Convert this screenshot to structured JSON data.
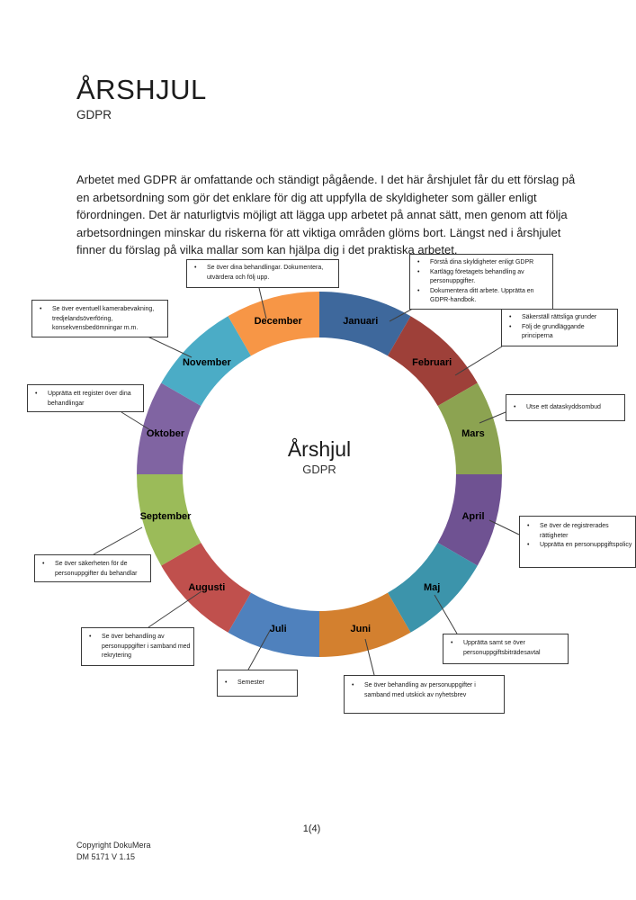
{
  "header": {
    "title": "ÅRSHJUL",
    "subtitle": "GDPR"
  },
  "intro": "Arbetet med GDPR är omfattande och ständigt pågående. I det här årshjulet får du ett förslag på en arbetsordning som gör det enklare för dig att uppfylla de skyldigheter som gäller enligt förordningen. Det är naturligtvis möjligt att lägga upp arbetet på annat sätt, men genom att följa arbetsordningen minskar du riskerna för att viktiga områden glöms bort. Längst ned i årshjulet finner du förslag på vilka mallar som kan hjälpa dig i det praktiska arbetet.",
  "wheel": {
    "center_title": "Årshjul",
    "center_subtitle": "GDPR",
    "months": [
      {
        "name": "Januari",
        "color": "#3E689C"
      },
      {
        "name": "Februari",
        "color": "#9E4039"
      },
      {
        "name": "Mars",
        "color": "#8CA351"
      },
      {
        "name": "April",
        "color": "#6F5292"
      },
      {
        "name": "Maj",
        "color": "#3C94AB"
      },
      {
        "name": "Juni",
        "color": "#D3802F"
      },
      {
        "name": "Juli",
        "color": "#4F81BD"
      },
      {
        "name": "Augusti",
        "color": "#C0504D"
      },
      {
        "name": "September",
        "color": "#9BBB59"
      },
      {
        "name": "Oktober",
        "color": "#8064A2"
      },
      {
        "name": "November",
        "color": "#4BACC6"
      },
      {
        "name": "December",
        "color": "#F79646"
      }
    ],
    "callouts": {
      "januari": {
        "items": [
          "Förstå dina skyldigheter enligt GDPR",
          "Kartlägg företagets behandling av personuppgifter.",
          "Dokumentera ditt arbete. Upprätta en GDPR-handbok."
        ]
      },
      "februari": {
        "items": [
          "Säkerställ rättsliga grunder",
          "Följ de grundläggande principerna"
        ]
      },
      "mars": {
        "items": [
          "Utse ett dataskyddsombud"
        ]
      },
      "april": {
        "items": [
          "Se över de registrerades rättigheter",
          "Upprätta en personuppgiftspolicy"
        ]
      },
      "maj": {
        "items": [
          "Upprätta samt se över personuppgiftsbiträdesavtal"
        ]
      },
      "juni": {
        "items": [
          "Se över behandling av personuppgifter i samband med utskick av nyhetsbrev"
        ]
      },
      "juli": {
        "items": [
          "Semester"
        ]
      },
      "augusti": {
        "items": [
          "Se över behandling av personuppgifter i samband med rekrytering"
        ]
      },
      "september": {
        "items": [
          "Se över säkerheten för de personuppgifter du behandlar"
        ]
      },
      "oktober": {
        "items": [
          "Upprätta ett register över dina behandlingar"
        ]
      },
      "november": {
        "items": [
          "Se över eventuell kamerabevakning, tredjelandsöverföring, konsekvensbedömningar m.m."
        ]
      },
      "december": {
        "items": [
          "Se över dina behandlingar. Dokumentera, utvärdera och följ upp."
        ]
      }
    }
  },
  "footer": {
    "page_number": "1(4)",
    "copyright_line1": "Copyright DokuMera",
    "copyright_line2": "DM 5171 V 1.15"
  }
}
